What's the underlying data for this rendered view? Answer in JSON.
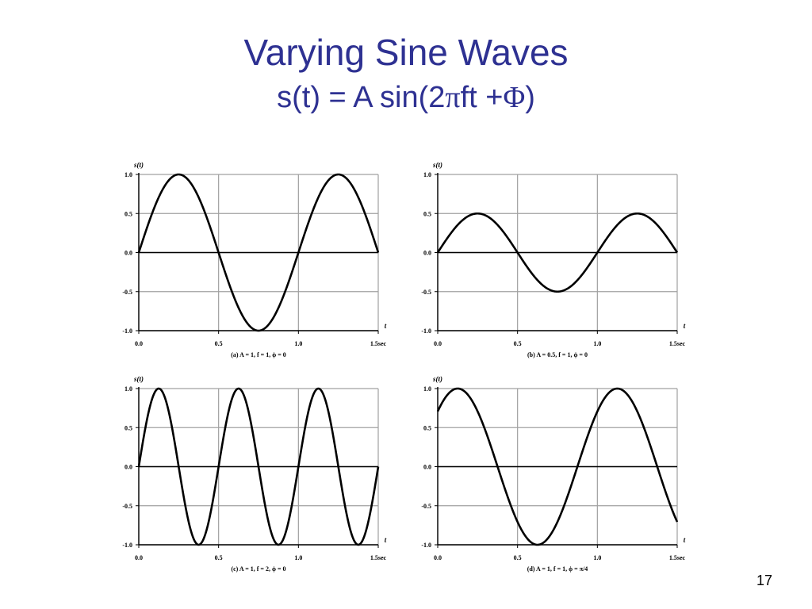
{
  "slide": {
    "title": "Varying Sine Waves",
    "formula_prefix": "s(t) = A sin(2",
    "formula_pi": "π",
    "formula_mid": "ft +",
    "formula_phi": "Φ",
    "formula_suffix": ")",
    "page_number": "17"
  },
  "colors": {
    "title": "#2e3192",
    "curve": "#000000",
    "grid": "#a0a0a0"
  },
  "chart_data": [
    {
      "type": "line",
      "ylabel": "s(t)",
      "xlabel": "t",
      "caption": "(a) A = 1, f = 1, ϕ = 0",
      "xlim": [
        0,
        1.5
      ],
      "ylim": [
        -1,
        1
      ],
      "x_ticks": [
        "0.0",
        "0.5",
        "1.0",
        "1.5sec"
      ],
      "y_ticks": [
        "1.0",
        "0.5",
        "0.0",
        "-0.5",
        "-1.0"
      ],
      "grid": true,
      "series": [
        {
          "amplitude": 1,
          "frequency": 1,
          "phase": 0
        }
      ]
    },
    {
      "type": "line",
      "ylabel": "s(t)",
      "xlabel": "t",
      "caption": "(b) A = 0.5, f = 1, ϕ = 0",
      "xlim": [
        0,
        1.5
      ],
      "ylim": [
        -1,
        1
      ],
      "x_ticks": [
        "0.0",
        "0.5",
        "1.0",
        "1.5sec"
      ],
      "y_ticks": [
        "1.0",
        "0.5",
        "0.0",
        "-0.5",
        "-1.0"
      ],
      "grid": true,
      "series": [
        {
          "amplitude": 0.5,
          "frequency": 1,
          "phase": 0
        }
      ]
    },
    {
      "type": "line",
      "ylabel": "s(t)",
      "xlabel": "t",
      "caption": "(c) A = 1, f = 2, ϕ = 0",
      "xlim": [
        0,
        1.5
      ],
      "ylim": [
        -1,
        1
      ],
      "x_ticks": [
        "0.0",
        "0.5",
        "1.0",
        "1.5sec"
      ],
      "y_ticks": [
        "1.0",
        "0.5",
        "0.0",
        "-0.5",
        "-1.0"
      ],
      "grid": true,
      "series": [
        {
          "amplitude": 1,
          "frequency": 2,
          "phase": 0
        }
      ]
    },
    {
      "type": "line",
      "ylabel": "s(t)",
      "xlabel": "t",
      "caption": "(d) A = 1, f = 1, ϕ = π/4",
      "xlim": [
        0,
        1.5
      ],
      "ylim": [
        -1,
        1
      ],
      "x_ticks": [
        "0.0",
        "0.5",
        "1.0",
        "1.5sec"
      ],
      "y_ticks": [
        "1.0",
        "0.5",
        "0.0",
        "-0.5",
        "-1.0"
      ],
      "grid": true,
      "series": [
        {
          "amplitude": 1,
          "frequency": 1,
          "phase": 0.7853981634
        }
      ]
    }
  ]
}
